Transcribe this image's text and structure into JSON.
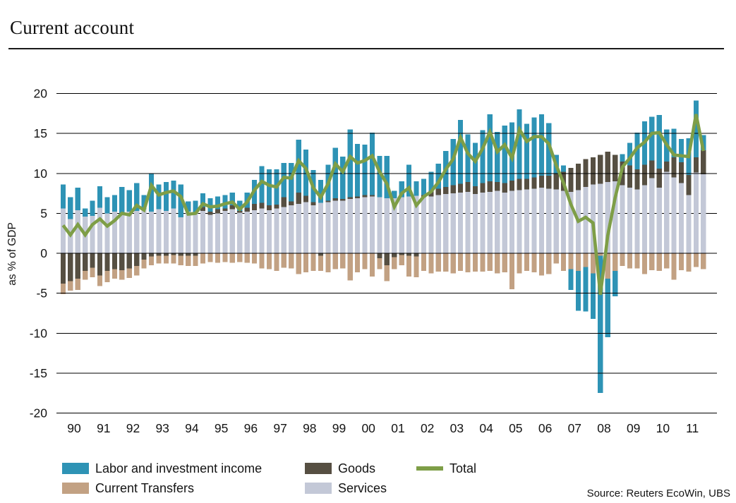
{
  "header": {
    "title": "Current account"
  },
  "y_axis": {
    "label": "as % of GDP",
    "ticks": [
      20,
      15,
      10,
      5,
      0,
      -5,
      -10,
      -15,
      -20
    ]
  },
  "x_axis": {
    "years": [
      "90",
      "91",
      "92",
      "93",
      "94",
      "95",
      "96",
      "97",
      "98",
      "99",
      "00",
      "01",
      "02",
      "03",
      "04",
      "05",
      "06",
      "07",
      "08",
      "09",
      "10",
      "11"
    ]
  },
  "legend": {
    "items": [
      {
        "key": "labor",
        "label": "Labor and investment income",
        "color": "#2E93B5",
        "marker": "square"
      },
      {
        "key": "goods",
        "label": "Goods",
        "color": "#564F42",
        "marker": "square"
      },
      {
        "key": "total",
        "label": "Total",
        "color": "#7E9E47",
        "marker": "line"
      },
      {
        "key": "transfers",
        "label": "Current Transfers",
        "color": "#C2A183",
        "marker": "square"
      },
      {
        "key": "services",
        "label": "Services",
        "color": "#C3C8D7",
        "marker": "square"
      }
    ]
  },
  "source": "Source: Reuters EcoWin, UBS",
  "colors": {
    "background": "#ffffff",
    "grid": "#000000",
    "text": "#141414"
  },
  "chart_data": {
    "type": "bar",
    "subtype": "stacked-quarterly-bars-with-total-line",
    "title": "Current account",
    "xlabel": "",
    "ylabel": "as % of GDP",
    "ylim": [
      -20,
      20
    ],
    "grid": "horizontal every 5, +5 line behind bars",
    "legend_position": "bottom",
    "x_year_labels": [
      "90",
      "91",
      "92",
      "93",
      "94",
      "95",
      "96",
      "97",
      "98",
      "99",
      "00",
      "01",
      "02",
      "03",
      "04",
      "05",
      "06",
      "07",
      "08",
      "09",
      "10",
      "11"
    ],
    "quarters": [
      "1990Q1",
      "1990Q2",
      "1990Q3",
      "1990Q4",
      "1991Q1",
      "1991Q2",
      "1991Q3",
      "1991Q4",
      "1992Q1",
      "1992Q2",
      "1992Q3",
      "1992Q4",
      "1993Q1",
      "1993Q2",
      "1993Q3",
      "1993Q4",
      "1994Q1",
      "1994Q2",
      "1994Q3",
      "1994Q4",
      "1995Q1",
      "1995Q2",
      "1995Q3",
      "1995Q4",
      "1996Q1",
      "1996Q2",
      "1996Q3",
      "1996Q4",
      "1997Q1",
      "1997Q2",
      "1997Q3",
      "1997Q4",
      "1998Q1",
      "1998Q2",
      "1998Q3",
      "1998Q4",
      "1999Q1",
      "1999Q2",
      "1999Q3",
      "1999Q4",
      "2000Q1",
      "2000Q2",
      "2000Q3",
      "2000Q4",
      "2001Q1",
      "2001Q2",
      "2001Q3",
      "2001Q4",
      "2002Q1",
      "2002Q2",
      "2002Q3",
      "2002Q4",
      "2003Q1",
      "2003Q2",
      "2003Q3",
      "2003Q4",
      "2004Q1",
      "2004Q2",
      "2004Q3",
      "2004Q4",
      "2005Q1",
      "2005Q2",
      "2005Q3",
      "2005Q4",
      "2006Q1",
      "2006Q2",
      "2006Q3",
      "2006Q4",
      "2007Q1",
      "2007Q2",
      "2007Q3",
      "2007Q4",
      "2008Q1",
      "2008Q2",
      "2008Q3",
      "2008Q4",
      "2009Q1",
      "2009Q2",
      "2009Q3",
      "2009Q4",
      "2010Q1",
      "2010Q2",
      "2010Q3",
      "2010Q4",
      "2011Q1",
      "2011Q2",
      "2011Q3",
      "2011Q4"
    ],
    "series": [
      {
        "name": "Services",
        "role": "bar",
        "color": "#C3C8D7",
        "values": [
          5.6,
          4.3,
          5.4,
          4.6,
          4.7,
          5.7,
          5.0,
          5.2,
          4.9,
          5.2,
          5.3,
          5.5,
          5.2,
          5.5,
          5.3,
          5.6,
          4.5,
          5.2,
          5.0,
          5.3,
          4.8,
          5.0,
          5.3,
          5.5,
          5.1,
          5.2,
          5.4,
          5.6,
          5.4,
          5.6,
          5.8,
          6.0,
          6.2,
          6.4,
          6.0,
          6.3,
          6.4,
          6.6,
          6.6,
          6.8,
          6.9,
          7.0,
          7.1,
          7.0,
          6.9,
          6.9,
          7.0,
          7.1,
          7.2,
          7.0,
          7.1,
          7.3,
          7.4,
          7.5,
          7.6,
          7.7,
          7.4,
          7.6,
          7.7,
          7.8,
          7.6,
          7.8,
          7.9,
          8.0,
          8.1,
          8.2,
          8.1,
          8.0,
          7.8,
          7.7,
          7.9,
          8.3,
          8.6,
          8.7,
          8.9,
          9.0,
          8.5,
          8.2,
          8.0,
          8.5,
          9.4,
          8.2,
          10.2,
          9.5,
          8.8,
          7.3,
          10.1,
          9.9
        ]
      },
      {
        "name": "Goods",
        "role": "bar",
        "color": "#564F42",
        "values": [
          -3.8,
          -3.5,
          -3.2,
          -2.2,
          -1.8,
          -2.8,
          -2.2,
          -2.0,
          -2.1,
          -1.9,
          -1.6,
          -0.8,
          -0.4,
          -0.3,
          -0.3,
          -0.2,
          -0.3,
          -0.3,
          -0.3,
          0.5,
          0.4,
          0.5,
          0.3,
          0.5,
          0.2,
          0.5,
          0.8,
          0.7,
          0.6,
          0.5,
          1.2,
          0.5,
          1.4,
          0.8,
          0.4,
          -0.3,
          0.2,
          0.3,
          0.2,
          0.2,
          0.2,
          0.3,
          0.2,
          -0.6,
          -1.5,
          -0.5,
          -0.2,
          -0.3,
          -0.4,
          0.3,
          0.7,
          0.8,
          0.9,
          1.0,
          1.1,
          1.2,
          1.0,
          1.2,
          1.3,
          1.1,
          1.2,
          1.3,
          1.4,
          1.3,
          1.4,
          1.5,
          1.6,
          2.0,
          2.4,
          3.0,
          3.3,
          3.5,
          3.4,
          3.6,
          3.8,
          3.3,
          3.0,
          2.8,
          2.5,
          2.6,
          2.2,
          2.4,
          1.3,
          2.5,
          2.6,
          2.5,
          1.9,
          3.0
        ]
      },
      {
        "name": "Current Transfers",
        "role": "bar",
        "color": "#C2A183",
        "values": [
          -1.3,
          -1.2,
          -1.4,
          -1.1,
          -1.2,
          -1.3,
          -1.4,
          -1.2,
          -1.2,
          -1.2,
          -1.2,
          -1.1,
          -1.1,
          -1.0,
          -1.0,
          -1.1,
          -1.2,
          -1.3,
          -1.3,
          -1.3,
          -1.1,
          -1.2,
          -1.1,
          -1.2,
          -1.1,
          -1.2,
          -1.3,
          -1.9,
          -2.0,
          -2.2,
          -1.8,
          -1.9,
          -2.6,
          -2.4,
          -2.2,
          -1.9,
          -2.4,
          -2.0,
          -1.9,
          -3.4,
          -2.4,
          -2.0,
          -2.9,
          -1.4,
          -2.0,
          -1.5,
          -1.3,
          -2.6,
          -2.6,
          -2.2,
          -2.5,
          -2.3,
          -2.3,
          -2.5,
          -2.2,
          -2.4,
          -2.3,
          -2.3,
          -2.2,
          -2.5,
          -2.4,
          -4.5,
          -2.5,
          -2.2,
          -2.4,
          -2.8,
          -2.6,
          -1.3,
          -2.2,
          -2.0,
          -2.2,
          -1.7,
          -2.5,
          -0.3,
          -3.2,
          -2.2,
          -1.6,
          -1.9,
          -1.9,
          -2.6,
          -2.1,
          -2.2,
          -1.9,
          -3.3,
          -2.1,
          -2.3,
          -1.7,
          -2.0
        ]
      },
      {
        "name": "Labor and investment income",
        "role": "bar",
        "color": "#2E93B5",
        "values": [
          3.0,
          2.7,
          2.8,
          1.0,
          1.9,
          2.7,
          2.0,
          2.1,
          3.4,
          2.7,
          3.5,
          1.8,
          4.8,
          3.1,
          3.6,
          3.5,
          4.1,
          1.3,
          1.6,
          1.7,
          1.7,
          1.6,
          1.7,
          1.6,
          1.3,
          1.9,
          3.0,
          4.6,
          4.5,
          4.4,
          4.3,
          4.8,
          6.6,
          5.8,
          4.0,
          2.9,
          4.5,
          6.3,
          5.3,
          8.5,
          6.6,
          6.3,
          7.8,
          5.2,
          5.3,
          0.9,
          2.0,
          4.0,
          1.8,
          2.0,
          2.4,
          3.1,
          4.5,
          5.8,
          8.0,
          6.0,
          5.4,
          6.6,
          8.4,
          6.3,
          7.2,
          7.3,
          8.7,
          6.9,
          7.5,
          7.7,
          6.6,
          2.3,
          0.8,
          -2.6,
          -5.0,
          -5.6,
          -5.7,
          -17.2,
          -7.3,
          -3.2,
          0.9,
          2.8,
          4.6,
          5.4,
          5.5,
          6.7,
          4.0,
          3.6,
          2.9,
          4.6,
          7.1,
          1.9
        ]
      },
      {
        "name": "Total",
        "role": "line",
        "color": "#7E9E47",
        "values": [
          3.5,
          2.3,
          3.6,
          2.3,
          3.6,
          4.3,
          3.4,
          4.1,
          5.0,
          4.8,
          6.0,
          5.4,
          8.5,
          7.3,
          7.6,
          7.8,
          7.1,
          4.9,
          5.0,
          6.2,
          5.8,
          5.9,
          6.2,
          6.4,
          5.5,
          6.4,
          7.9,
          9.0,
          8.5,
          8.3,
          9.5,
          9.4,
          11.6,
          10.6,
          8.2,
          7.0,
          8.7,
          11.2,
          10.2,
          12.1,
          11.3,
          11.6,
          12.2,
          10.2,
          8.7,
          5.8,
          7.5,
          8.2,
          6.0,
          7.1,
          7.7,
          8.9,
          10.5,
          11.8,
          14.5,
          12.5,
          11.5,
          13.1,
          15.2,
          12.7,
          13.6,
          11.9,
          15.5,
          14.0,
          14.6,
          14.6,
          13.7,
          11.0,
          8.8,
          6.1,
          4.0,
          4.5,
          3.8,
          -5.2,
          2.2,
          6.9,
          10.8,
          11.9,
          13.2,
          13.9,
          15.0,
          15.1,
          13.6,
          12.3,
          12.2,
          12.1,
          17.4,
          12.8
        ]
      }
    ]
  }
}
